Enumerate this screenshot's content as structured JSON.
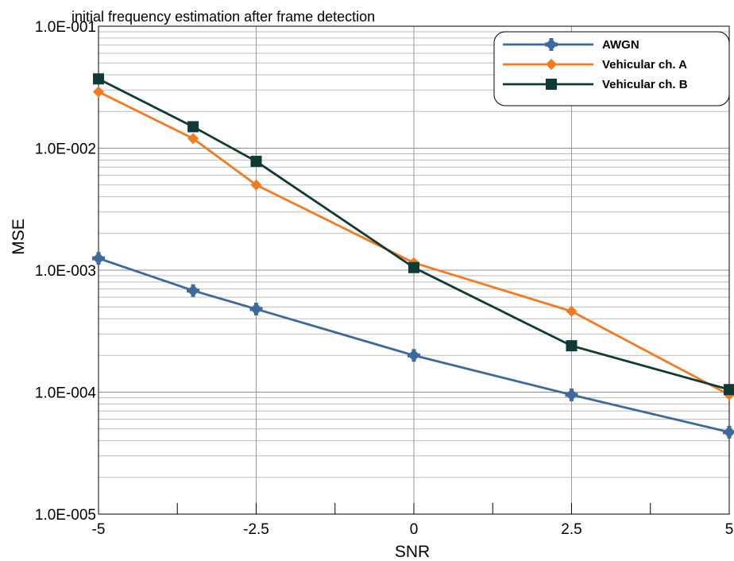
{
  "chart_data": {
    "type": "line",
    "title": "initial frequency estimation after frame detection",
    "xlabel": "SNR",
    "ylabel": "MSE",
    "x": [
      -5,
      -3.5,
      -2.5,
      0,
      2.5,
      5
    ],
    "xlim": [
      -5,
      5
    ],
    "ylim": [
      1e-05,
      0.1
    ],
    "yscale": "log",
    "x_ticks": [
      -5,
      -2.5,
      0,
      2.5,
      5
    ],
    "x_tick_labels": [
      "-5",
      "-2.5",
      "0",
      "2.5",
      "5"
    ],
    "y_ticks": [
      1e-05,
      0.0001,
      0.001,
      0.01,
      0.1
    ],
    "y_tick_labels": [
      "1.0E-005",
      "1.0E-004",
      "1.0E-003",
      "1.0E-002",
      "1.0E-001"
    ],
    "grid": true,
    "legend_position": "top-right",
    "series": [
      {
        "name": "AWGN",
        "color": "#3c6a9c",
        "marker": "plus-circle",
        "values": [
          0.00125,
          0.00068,
          0.00048,
          0.0002,
          9.5e-05,
          4.7e-05
        ]
      },
      {
        "name": "Vehicular ch. A",
        "color": "#f47a1f",
        "marker": "diamond",
        "values": [
          0.029,
          0.012,
          0.005,
          0.00115,
          0.00046,
          9.5e-05
        ]
      },
      {
        "name": "Vehicular ch. B",
        "color": "#0f3a35",
        "marker": "square",
        "values": [
          0.037,
          0.015,
          0.0078,
          0.00105,
          0.00024,
          0.000105
        ]
      }
    ]
  }
}
